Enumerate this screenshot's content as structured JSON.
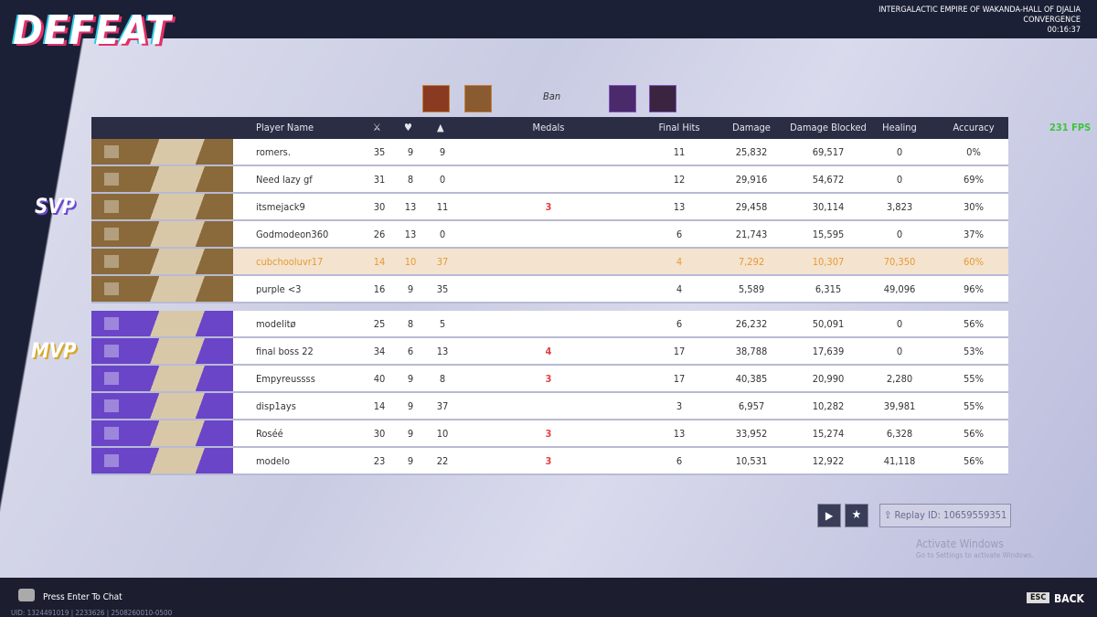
{
  "header": {
    "result": "DEFEAT",
    "map": "INTERGALACTIC EMPIRE OF WAKANDA-HALL OF DJALIA",
    "mode": "CONVERGENCE",
    "time": "00:16:37"
  },
  "ban_label": "Ban",
  "fps": "231 FPS",
  "columns": {
    "name": "Player Name",
    "medals": "Medals",
    "final_hits": "Final Hits",
    "damage": "Damage",
    "blocked": "Damage Blocked",
    "healing": "Healing",
    "accuracy": "Accuracy"
  },
  "teams": [
    {
      "color": "#8a6a3a",
      "players": [
        {
          "name": "romers.",
          "kills": "35",
          "deaths": "9",
          "assists": "9",
          "final_hits": "11",
          "damage": "25,832",
          "blocked": "69,517",
          "healing": "0",
          "accuracy": "0%"
        },
        {
          "name": "Need lazy gf",
          "kills": "31",
          "deaths": "8",
          "assists": "0",
          "final_hits": "12",
          "damage": "29,916",
          "blocked": "54,672",
          "healing": "0",
          "accuracy": "69%"
        },
        {
          "name": "itsmejack9",
          "kills": "30",
          "deaths": "13",
          "assists": "11",
          "medals": "3",
          "badge": "SVP",
          "final_hits": "13",
          "damage": "29,458",
          "blocked": "30,114",
          "healing": "3,823",
          "accuracy": "30%"
        },
        {
          "name": "Godmodeon360",
          "kills": "26",
          "deaths": "13",
          "assists": "0",
          "final_hits": "6",
          "damage": "21,743",
          "blocked": "15,595",
          "healing": "0",
          "accuracy": "37%"
        },
        {
          "name": "cubchooluvr17",
          "kills": "14",
          "deaths": "10",
          "assists": "37",
          "final_hits": "4",
          "damage": "7,292",
          "blocked": "10,307",
          "healing": "70,350",
          "accuracy": "60%",
          "local_player": true
        },
        {
          "name": "purple  <3",
          "kills": "16",
          "deaths": "9",
          "assists": "35",
          "final_hits": "4",
          "damage": "5,589",
          "blocked": "6,315",
          "healing": "49,096",
          "accuracy": "96%"
        }
      ]
    },
    {
      "color": "#6a45c8",
      "players": [
        {
          "name": "modelitø",
          "kills": "25",
          "deaths": "8",
          "assists": "5",
          "final_hits": "6",
          "damage": "26,232",
          "blocked": "50,091",
          "healing": "0",
          "accuracy": "56%"
        },
        {
          "name": "final boss 22",
          "kills": "34",
          "deaths": "6",
          "assists": "13",
          "medals": "4",
          "badge": "MVP",
          "final_hits": "17",
          "damage": "38,788",
          "blocked": "17,639",
          "healing": "0",
          "accuracy": "53%"
        },
        {
          "name": "Empyreussss",
          "kills": "40",
          "deaths": "9",
          "assists": "8",
          "medals": "3",
          "final_hits": "17",
          "damage": "40,385",
          "blocked": "20,990",
          "healing": "2,280",
          "accuracy": "55%"
        },
        {
          "name": "disp1ays",
          "kills": "14",
          "deaths": "9",
          "assists": "37",
          "final_hits": "3",
          "damage": "6,957",
          "blocked": "10,282",
          "healing": "39,981",
          "accuracy": "55%"
        },
        {
          "name": "Roséé",
          "kills": "30",
          "deaths": "9",
          "assists": "10",
          "medals": "3",
          "final_hits": "13",
          "damage": "33,952",
          "blocked": "15,274",
          "healing": "6,328",
          "accuracy": "56%"
        },
        {
          "name": "modelo",
          "kills": "23",
          "deaths": "9",
          "assists": "22",
          "medals": "3",
          "final_hits": "6",
          "damage": "10,531",
          "blocked": "12,922",
          "healing": "41,118",
          "accuracy": "56%"
        }
      ]
    }
  ],
  "footer": {
    "chat": "Press Enter To Chat",
    "uid": "UID: 1324491019 | 2233626 | 2508260010-0500",
    "replay": "Replay ID: 10659559351",
    "activate_title": "Activate Windows",
    "activate_sub": "Go to Settings to activate Windows.",
    "esc": "ESC",
    "back": "BACK"
  }
}
